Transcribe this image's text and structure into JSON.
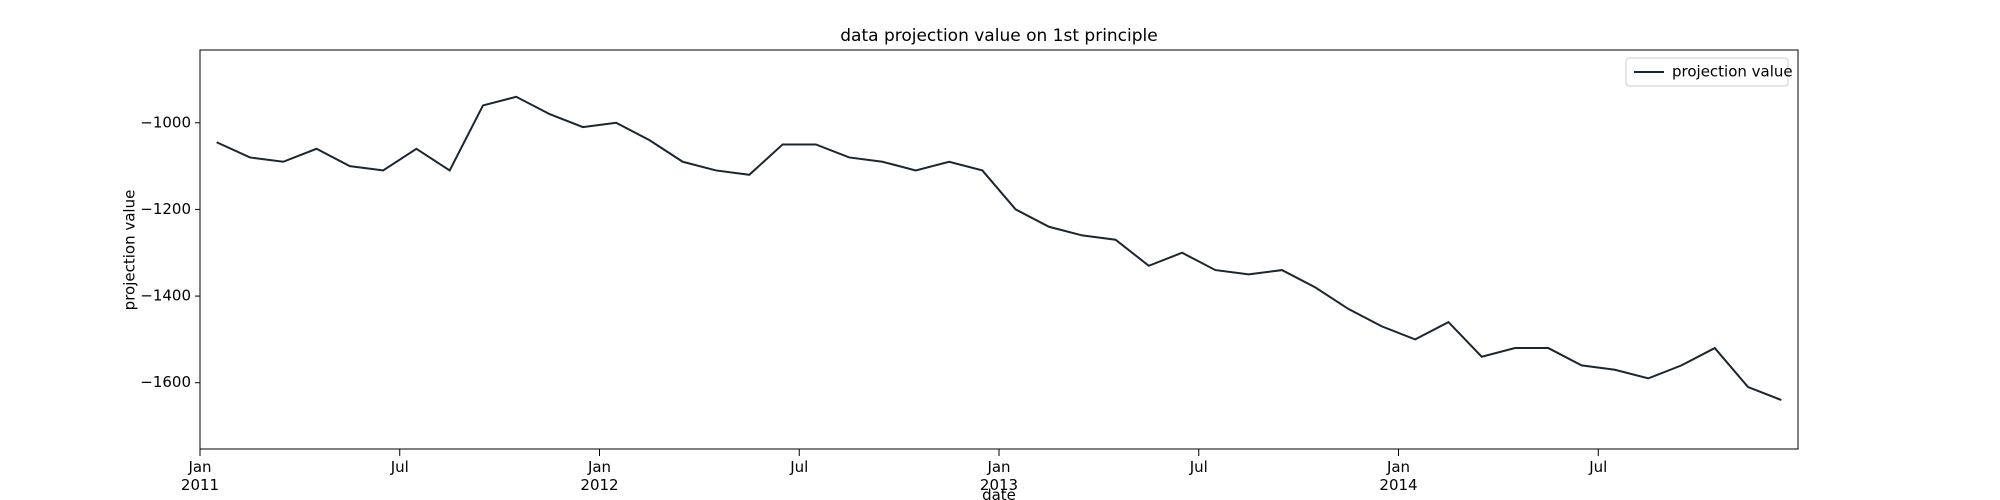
{
  "chart_data": {
    "type": "line",
    "title": "data projection value on 1st principle",
    "xlabel": "date",
    "ylabel": "projection value",
    "x": [
      "2011-01",
      "2011-02",
      "2011-03",
      "2011-04",
      "2011-05",
      "2011-06",
      "2011-07",
      "2011-08",
      "2011-09",
      "2011-10",
      "2011-11",
      "2011-12",
      "2012-01",
      "2012-02",
      "2012-03",
      "2012-04",
      "2012-05",
      "2012-06",
      "2012-07",
      "2012-08",
      "2012-09",
      "2012-10",
      "2012-11",
      "2012-12",
      "2013-01",
      "2013-02",
      "2013-03",
      "2013-04",
      "2013-05",
      "2013-06",
      "2013-07",
      "2013-08",
      "2013-09",
      "2013-10",
      "2013-11",
      "2013-12",
      "2014-01",
      "2014-02",
      "2014-03",
      "2014-04",
      "2014-05",
      "2014-06",
      "2014-07",
      "2014-08",
      "2014-09",
      "2014-10",
      "2014-11",
      "2014-12"
    ],
    "series": [
      {
        "name": "projection value",
        "color": "#1b2631",
        "values": [
          -1045,
          -1080,
          -1090,
          -1060,
          -1100,
          -1110,
          -1060,
          -1110,
          -960,
          -940,
          -980,
          -1010,
          -1000,
          -1040,
          -1090,
          -1110,
          -1120,
          -1050,
          -1050,
          -1080,
          -1090,
          -1110,
          -1090,
          -1110,
          -1200,
          -1240,
          -1260,
          -1270,
          -1330,
          -1300,
          -1340,
          -1350,
          -1340,
          -1380,
          -1430,
          -1470,
          -1500,
          -1460,
          -1540,
          -1520,
          -1520,
          -1560,
          -1570,
          -1590,
          -1560,
          -1520,
          -1610,
          -1640
        ]
      }
    ],
    "xlim": [
      "2011-01",
      "2015-01"
    ],
    "xticks": [
      {
        "value": "2011-01",
        "label": "Jan\n2011"
      },
      {
        "value": "2011-07",
        "label": "Jul"
      },
      {
        "value": "2012-01",
        "label": "Jan\n2012"
      },
      {
        "value": "2012-07",
        "label": "Jul"
      },
      {
        "value": "2013-01",
        "label": "Jan\n2013"
      },
      {
        "value": "2013-07",
        "label": "Jul"
      },
      {
        "value": "2014-01",
        "label": "Jan\n2014"
      },
      {
        "value": "2014-07",
        "label": "Jul"
      }
    ],
    "ylim": [
      -1753,
      -832
    ],
    "yticks": [
      {
        "value": -1000,
        "label": "−1000"
      },
      {
        "value": -1200,
        "label": "−1200"
      },
      {
        "value": -1400,
        "label": "−1400"
      },
      {
        "value": -1600,
        "label": "−1600"
      }
    ],
    "legend": "upper right"
  }
}
